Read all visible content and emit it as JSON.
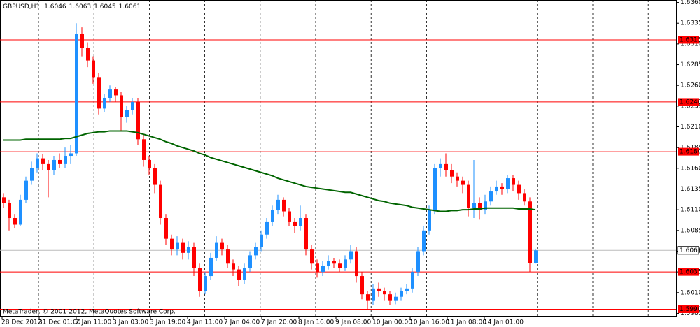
{
  "chart_data": {
    "type": "candlestick",
    "title": "GBPUSD,H1",
    "header_values": [
      1.6046,
      1.6063,
      1.6045,
      1.6061
    ],
    "footer": "MetaTrader, © 2001-2012, MetaQuotes Software Corp.",
    "x_labels": [
      "28 Dec 2012",
      "31 Dec 01:00",
      "2 Jan 11:00",
      "3 Jan 03:00",
      "3 Jan 19:00",
      "4 Jan 11:00",
      "7 Jan 04:00",
      "7 Jan 20:00",
      "8 Jan 16:00",
      "9 Jan 08:00",
      "10 Jan 00:00",
      "10 Jan 16:00",
      "11 Jan 08:00",
      "14 Jan 01:00"
    ],
    "ylim": [
      1.5982,
      1.6363
    ],
    "yticks": [
      {
        "value": 1.636,
        "label": "1.6360"
      },
      1.6335,
      {
        "value": 1.631,
        "label": "1.6310"
      },
      1.6285,
      {
        "value": 1.626,
        "label": "1.6260"
      },
      1.6235,
      {
        "value": 1.621,
        "label": "1.6210"
      },
      1.6185,
      {
        "value": 1.616,
        "label": "1.6160"
      },
      1.6135,
      {
        "value": 1.611,
        "label": "1.6110"
      },
      1.6085,
      {
        "value": 1.606,
        "label": "1.6060"
      },
      1.6035,
      {
        "value": 1.601,
        "label": "1.6010"
      },
      1.5985
    ],
    "levels": [
      1.6315,
      {
        "value": 1.624,
        "label": "1.6240"
      },
      {
        "value": 1.618,
        "label": "1.6180"
      },
      1.6035,
      {
        "value": 1.599,
        "label": "1.5990"
      }
    ],
    "current_price": 1.6061,
    "up_color": "#1e90ff",
    "down_color": "#ff0000",
    "level_color": "#ff0000",
    "ma_color": "#006400",
    "open": [
      1.6125,
      1.6118,
      1.61,
      1.6092,
      1.6122,
      1.6145,
      1.616,
      1.6172,
      1.6165,
      1.6158,
      1.617,
      1.6165,
      1.6175,
      1.6178,
      1.6322,
      1.6305,
      1.629,
      1.627,
      1.6232,
      1.6245,
      1.6255,
      1.6248,
      1.6222,
      1.623,
      1.624,
      1.6195,
      1.617,
      1.616,
      1.614,
      1.61,
      1.6075,
      1.6062,
      1.607,
      1.6058,
      1.6065,
      1.604,
      1.6012,
      1.603,
      1.6052,
      1.607,
      1.6062,
      1.6045,
      1.6038,
      1.6025,
      1.604,
      1.6055,
      1.6065,
      1.608,
      1.6095,
      1.611,
      1.6122,
      1.6108,
      1.6095,
      1.609,
      1.61,
      1.6062,
      1.6045,
      1.6035,
      1.6042,
      1.6048,
      1.6045,
      1.604,
      1.605,
      1.606,
      1.603,
      1.6008,
      1.6,
      1.6015,
      1.6012,
      1.6008,
      1.6,
      1.6005,
      1.6012,
      1.6015,
      1.6035,
      1.606,
      1.6085,
      1.611,
      1.616,
      1.6165,
      1.6158,
      1.615,
      1.6145,
      1.614,
      1.6112,
      1.6118,
      1.611,
      1.612,
      1.6132,
      1.6138,
      1.6135,
      1.6148,
      1.614,
      1.613,
      1.612,
      1.6046
    ],
    "high": [
      1.613,
      1.6122,
      1.6105,
      1.6128,
      1.615,
      1.6168,
      1.6178,
      1.6177,
      1.617,
      1.6175,
      1.6178,
      1.6185,
      1.6188,
      1.6335,
      1.633,
      1.6312,
      1.6295,
      1.6275,
      1.625,
      1.626,
      1.6258,
      1.6252,
      1.6235,
      1.6245,
      1.6245,
      1.62,
      1.6175,
      1.6165,
      1.6145,
      1.6105,
      1.608,
      1.6078,
      1.6075,
      1.6072,
      1.607,
      1.6045,
      1.6035,
      1.6058,
      1.6078,
      1.6075,
      1.6068,
      1.605,
      1.6042,
      1.6045,
      1.606,
      1.607,
      1.6085,
      1.61,
      1.6115,
      1.6128,
      1.6125,
      1.6112,
      1.61,
      1.6115,
      1.6105,
      1.6068,
      1.605,
      1.6048,
      1.6055,
      1.6052,
      1.605,
      1.6055,
      1.6068,
      1.6065,
      1.6035,
      1.6012,
      1.602,
      1.6022,
      1.6016,
      1.6012,
      1.601,
      1.6016,
      1.602,
      1.604,
      1.6065,
      1.609,
      1.6115,
      1.6165,
      1.6172,
      1.6178,
      1.6165,
      1.6155,
      1.615,
      1.6145,
      1.617,
      1.6125,
      1.6128,
      1.6138,
      1.6145,
      1.6142,
      1.6152,
      1.6152,
      1.6145,
      1.6135,
      1.6125,
      1.6063
    ],
    "low": [
      1.6112,
      1.6085,
      1.6088,
      1.609,
      1.6118,
      1.614,
      1.6155,
      1.6158,
      1.6125,
      1.6152,
      1.616,
      1.616,
      1.6165,
      1.6175,
      1.6295,
      1.6282,
      1.6262,
      1.6225,
      1.6228,
      1.624,
      1.624,
      1.6205,
      1.6215,
      1.6225,
      1.6188,
      1.6162,
      1.6152,
      1.613,
      1.6092,
      1.6068,
      1.6055,
      1.6055,
      1.605,
      1.605,
      1.603,
      1.6005,
      1.6008,
      1.6025,
      1.6048,
      1.6055,
      1.604,
      1.603,
      1.6018,
      1.602,
      1.6035,
      1.605,
      1.606,
      1.6075,
      1.609,
      1.6105,
      1.6102,
      1.609,
      1.6082,
      1.6085,
      1.6055,
      1.6038,
      1.6028,
      1.603,
      1.6038,
      1.604,
      1.6035,
      1.6036,
      1.6045,
      1.6022,
      1.6002,
      1.599,
      1.5995,
      1.6005,
      1.6,
      1.5995,
      1.5996,
      1.6,
      1.6008,
      1.601,
      1.603,
      1.6055,
      1.608,
      1.6105,
      1.615,
      1.615,
      1.6142,
      1.6138,
      1.613,
      1.6102,
      1.61,
      1.6098,
      1.6105,
      1.6115,
      1.6128,
      1.6128,
      1.613,
      1.6132,
      1.6122,
      1.6115,
      1.6035,
      1.6045
    ],
    "close": [
      1.6118,
      1.61,
      1.6092,
      1.6122,
      1.6145,
      1.616,
      1.6172,
      1.6165,
      1.6158,
      1.617,
      1.6165,
      1.6175,
      1.6178,
      1.6322,
      1.6305,
      1.629,
      1.627,
      1.6232,
      1.6245,
      1.6255,
      1.6248,
      1.6222,
      1.623,
      1.624,
      1.6195,
      1.617,
      1.616,
      1.614,
      1.61,
      1.6075,
      1.6062,
      1.607,
      1.6058,
      1.6065,
      1.604,
      1.6012,
      1.603,
      1.6052,
      1.607,
      1.6062,
      1.6045,
      1.6038,
      1.6025,
      1.604,
      1.6055,
      1.6065,
      1.608,
      1.6095,
      1.611,
      1.6122,
      1.6108,
      1.6095,
      1.609,
      1.61,
      1.6062,
      1.6045,
      1.6035,
      1.6042,
      1.6048,
      1.6045,
      1.604,
      1.605,
      1.606,
      1.603,
      1.6008,
      1.6,
      1.6015,
      1.6012,
      1.6008,
      1.6,
      1.6005,
      1.6012,
      1.6015,
      1.6035,
      1.606,
      1.6085,
      1.611,
      1.616,
      1.6165,
      1.6158,
      1.615,
      1.6145,
      1.614,
      1.6112,
      1.6118,
      1.611,
      1.612,
      1.6132,
      1.6138,
      1.6135,
      1.6148,
      1.614,
      1.613,
      1.612,
      1.6046,
      1.6061
    ],
    "ma": [
      1.6194,
      1.6194,
      1.6194,
      1.6194,
      1.6195,
      1.6195,
      1.6195,
      1.6195,
      1.6195,
      1.6195,
      1.6195,
      1.6196,
      1.6196,
      1.6198,
      1.62,
      1.6202,
      1.6203,
      1.6204,
      1.6204,
      1.6205,
      1.6205,
      1.6205,
      1.6205,
      1.6204,
      1.6203,
      1.6201,
      1.6199,
      1.6197,
      1.6195,
      1.6192,
      1.619,
      1.6187,
      1.6185,
      1.6183,
      1.6181,
      1.6178,
      1.6176,
      1.6173,
      1.6171,
      1.6169,
      1.6167,
      1.6165,
      1.6163,
      1.6161,
      1.6159,
      1.6157,
      1.6155,
      1.6153,
      1.6151,
      1.6148,
      1.6146,
      1.6144,
      1.6142,
      1.614,
      1.6138,
      1.6137,
      1.6136,
      1.6135,
      1.6134,
      1.6133,
      1.6132,
      1.6131,
      1.6131,
      1.6129,
      1.6127,
      1.6125,
      1.6123,
      1.6121,
      1.612,
      1.6118,
      1.6117,
      1.6116,
      1.6115,
      1.6113,
      1.6112,
      1.6111,
      1.611,
      1.6109,
      1.6108,
      1.6108,
      1.6109,
      1.6109,
      1.611,
      1.611,
      1.6111,
      1.6111,
      1.6112,
      1.6112,
      1.6112,
      1.6112,
      1.6112,
      1.6112,
      1.6111,
      1.6111,
      1.6111,
      1.611
    ]
  }
}
